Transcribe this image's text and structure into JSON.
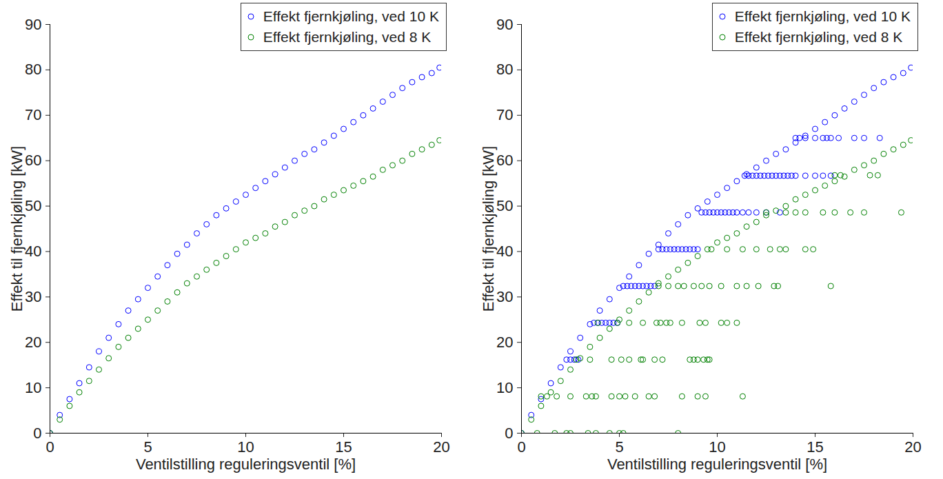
{
  "chart_data": [
    {
      "type": "scatter",
      "xlabel": "Ventilstilling reguleringsventil [%]",
      "ylabel": "Effekt til fjernkjøling [kW]",
      "xlim": [
        0,
        20
      ],
      "ylim": [
        0,
        90
      ],
      "xticks": [
        0,
        5,
        10,
        15,
        20
      ],
      "yticks": [
        0,
        10,
        20,
        30,
        40,
        50,
        60,
        70,
        80,
        90
      ],
      "legend": "top-right",
      "marker": "circle",
      "grid": false,
      "series": [
        {
          "name": "Effekt fjernkjøling, ved 10 K",
          "color": "#0000ff",
          "x": [
            0,
            0.5,
            1,
            1.5,
            2,
            2.5,
            3,
            3.5,
            4,
            4.5,
            5,
            5.5,
            6,
            6.5,
            7,
            7.5,
            8,
            8.5,
            9,
            9.5,
            10,
            10.5,
            11,
            11.5,
            12,
            12.5,
            13,
            13.5,
            14,
            14.5,
            15,
            15.5,
            16,
            16.5,
            17,
            17.5,
            18,
            18.5,
            19,
            19.5,
            19.9
          ],
          "values": [
            0,
            4,
            7.5,
            11,
            14.5,
            18,
            21,
            24,
            27,
            29.5,
            32,
            34.5,
            37,
            39.5,
            41.5,
            44,
            46,
            48,
            49.5,
            51,
            52.5,
            54,
            55.5,
            57,
            58.5,
            60,
            61.5,
            62.5,
            64,
            65.5,
            67,
            68.5,
            70,
            71.5,
            73,
            74.5,
            76,
            77.3,
            78.4,
            79.3,
            80.5
          ]
        },
        {
          "name": "Effekt fjernkjøling, ved 8 K",
          "color": "#008000",
          "x": [
            0,
            0.5,
            1,
            1.5,
            2,
            2.5,
            3,
            3.5,
            4,
            4.5,
            5,
            5.5,
            6,
            6.5,
            7,
            7.5,
            8,
            8.5,
            9,
            9.5,
            10,
            10.5,
            11,
            11.5,
            12,
            12.5,
            13,
            13.5,
            14,
            14.5,
            15,
            15.5,
            16,
            16.5,
            17,
            17.5,
            18,
            18.5,
            19,
            19.5,
            19.9
          ],
          "values": [
            0,
            3,
            6,
            9,
            11.5,
            14,
            16.5,
            19,
            21,
            23,
            25,
            27,
            29,
            31,
            33,
            34.5,
            36,
            37.5,
            39,
            40.5,
            42,
            43,
            44,
            45.5,
            46.5,
            48,
            49,
            50,
            51.5,
            52.5,
            53.5,
            54.5,
            55.5,
            56.5,
            58,
            59,
            60,
            61.5,
            62.5,
            63.5,
            64.5
          ]
        }
      ]
    },
    {
      "type": "scatter",
      "xlabel": "Ventilstilling reguleringsventil [%]",
      "ylabel": "Effekt til fjernkjøling [kW]",
      "xlim": [
        0,
        20
      ],
      "ylim": [
        0,
        90
      ],
      "xticks": [
        0,
        5,
        10,
        15,
        20
      ],
      "yticks": [
        0,
        10,
        20,
        30,
        40,
        50,
        60,
        70,
        80,
        90
      ],
      "legend": "top-right",
      "marker": "circle",
      "grid": false,
      "series": [
        {
          "name": "Effekt fjernkjøling, ved 10 K",
          "color": "#0000ff",
          "x": [
            0,
            0.5,
            1,
            1.5,
            2,
            2.5,
            3,
            3.5,
            4,
            4.5,
            5,
            5.5,
            6,
            6.5,
            7,
            7.5,
            8,
            8.5,
            9,
            9.5,
            10,
            10.5,
            11,
            11.5,
            12,
            12.5,
            13,
            13.5,
            14,
            14.5,
            15,
            15.5,
            16,
            16.5,
            17,
            17.5,
            18,
            18.5,
            19,
            19.5,
            19.9,
            2.3,
            2.5,
            2.7,
            2.9,
            3.7,
            3.9,
            4.1,
            4.3,
            4.5,
            4.7,
            4.9,
            5.2,
            5.4,
            5.6,
            5.8,
            6.0,
            6.2,
            6.4,
            6.6,
            6.8,
            7.0,
            7.2,
            7.4,
            7.6,
            7.8,
            8.0,
            8.2,
            8.4,
            8.6,
            8.8,
            9.0,
            9.2,
            9.4,
            9.6,
            9.8,
            10.0,
            10.2,
            10.4,
            10.6,
            10.8,
            11.0,
            11.3,
            11.6,
            12.0,
            12.5,
            13.2,
            11.4,
            11.6,
            11.8,
            12.0,
            12.2,
            12.4,
            12.6,
            12.8,
            13.0,
            13.2,
            13.4,
            13.6,
            13.8,
            14.0,
            14.5,
            15.0,
            15.4,
            15.8,
            14.0,
            14.2,
            14.5,
            15.0,
            15.4,
            15.6,
            15.8,
            16.2,
            17.0,
            17.5,
            18.3
          ],
          "values": [
            0,
            4,
            7.5,
            11,
            14.5,
            18,
            21,
            24,
            27,
            29.5,
            32,
            34.5,
            37,
            39.5,
            41.5,
            44,
            46,
            48,
            49.5,
            51,
            52.5,
            54,
            55.5,
            57,
            58.5,
            60,
            61.5,
            62.5,
            64,
            65.5,
            67,
            68.5,
            70,
            71.5,
            73,
            74.5,
            76,
            77.3,
            78.4,
            79.3,
            80.5,
            16.2,
            16.2,
            16.2,
            16.2,
            24.3,
            24.3,
            24.3,
            24.3,
            24.3,
            24.3,
            24.3,
            32.4,
            32.4,
            32.4,
            32.4,
            32.4,
            32.4,
            32.4,
            32.4,
            32.4,
            40.5,
            40.5,
            40.5,
            40.5,
            40.5,
            40.5,
            40.5,
            40.5,
            40.5,
            40.5,
            40.5,
            48.6,
            48.6,
            48.6,
            48.6,
            48.6,
            48.6,
            48.6,
            48.6,
            48.6,
            48.6,
            48.6,
            48.6,
            48.6,
            48.6,
            48.6,
            56.7,
            56.7,
            56.7,
            56.7,
            56.7,
            56.7,
            56.7,
            56.7,
            56.7,
            56.7,
            56.7,
            56.7,
            56.7,
            56.7,
            56.7,
            56.7,
            56.7,
            56.7,
            65,
            65,
            65,
            65,
            65,
            65,
            65,
            65,
            65,
            65,
            65
          ]
        },
        {
          "name": "Effekt fjernkjøling, ved 8 K",
          "color": "#008000",
          "x": [
            0,
            0.5,
            1,
            1.5,
            2,
            2.5,
            3,
            3.5,
            4,
            4.5,
            5,
            5.5,
            6,
            6.5,
            7,
            7.5,
            8,
            8.5,
            9,
            9.5,
            10,
            10.5,
            11,
            11.5,
            12,
            12.5,
            13,
            13.5,
            14,
            14.5,
            15,
            15.5,
            16,
            16.5,
            17,
            17.5,
            18,
            18.5,
            19,
            19.5,
            19.9,
            0.8,
            1.7,
            2.3,
            2.5,
            3.4,
            3.8,
            4.5,
            5.0,
            5.2,
            8.0,
            1.0,
            1.3,
            1.8,
            2.5,
            3.3,
            3.6,
            3.8,
            4.6,
            5.0,
            5.3,
            5.8,
            6.5,
            6.8,
            8.2,
            9.0,
            9.4,
            11.3,
            2.8,
            3.5,
            4.6,
            5.1,
            5.5,
            6.1,
            6.2,
            6.8,
            7.2,
            8.6,
            8.8,
            9.0,
            9.3,
            9.5,
            9.6,
            3.9,
            4.9,
            5.5,
            6.2,
            6.9,
            7.1,
            7.4,
            7.6,
            8.2,
            9.1,
            9.4,
            10.2,
            10.5,
            11.0,
            7.0,
            7.5,
            8.0,
            8.3,
            8.8,
            9.2,
            9.6,
            10.2,
            11.0,
            11.5,
            12.1,
            12.9,
            13.1,
            15.8,
            9.7,
            10.5,
            11.3,
            12.0,
            12.7,
            13.2,
            13.5,
            14.5,
            14.9,
            12.5,
            13.5,
            14.0,
            14.5,
            15.4,
            16.0,
            16.8,
            17.5,
            19.4,
            16.0,
            16.3,
            17.8,
            18.2
          ],
          "values": [
            0,
            3,
            6,
            9,
            11.5,
            14,
            16.5,
            19,
            21,
            23,
            25,
            27,
            29,
            31,
            33,
            34.5,
            36,
            37.5,
            39,
            40.5,
            42,
            43,
            44,
            45.5,
            46.5,
            48,
            49,
            50,
            51.5,
            52.5,
            53.5,
            54.5,
            55.5,
            56.5,
            58,
            59,
            60,
            61.5,
            62.5,
            63.5,
            64.5,
            0,
            0,
            0,
            0,
            0,
            0,
            0,
            0,
            0,
            0,
            8.1,
            8.1,
            8.1,
            8.1,
            8.1,
            8.1,
            8.1,
            8.1,
            8.1,
            8.1,
            8.1,
            8.1,
            8.1,
            8.1,
            8.1,
            8.1,
            8.1,
            16.2,
            16.2,
            16.2,
            16.2,
            16.2,
            16.2,
            16.2,
            16.2,
            16.2,
            16.2,
            16.2,
            16.2,
            16.2,
            16.2,
            16.2,
            24.3,
            24.3,
            24.3,
            24.3,
            24.3,
            24.3,
            24.3,
            24.3,
            24.3,
            24.3,
            24.3,
            24.3,
            24.3,
            24.3,
            32.4,
            32.4,
            32.4,
            32.4,
            32.4,
            32.4,
            32.4,
            32.4,
            32.4,
            32.4,
            32.4,
            32.4,
            32.4,
            32.4,
            40.5,
            40.5,
            40.5,
            40.5,
            40.5,
            40.5,
            40.5,
            40.5,
            40.5,
            48.6,
            48.6,
            48.6,
            48.6,
            48.6,
            48.6,
            48.6,
            48.6,
            48.6,
            56.8,
            56.8,
            56.8,
            56.8
          ]
        }
      ]
    }
  ]
}
